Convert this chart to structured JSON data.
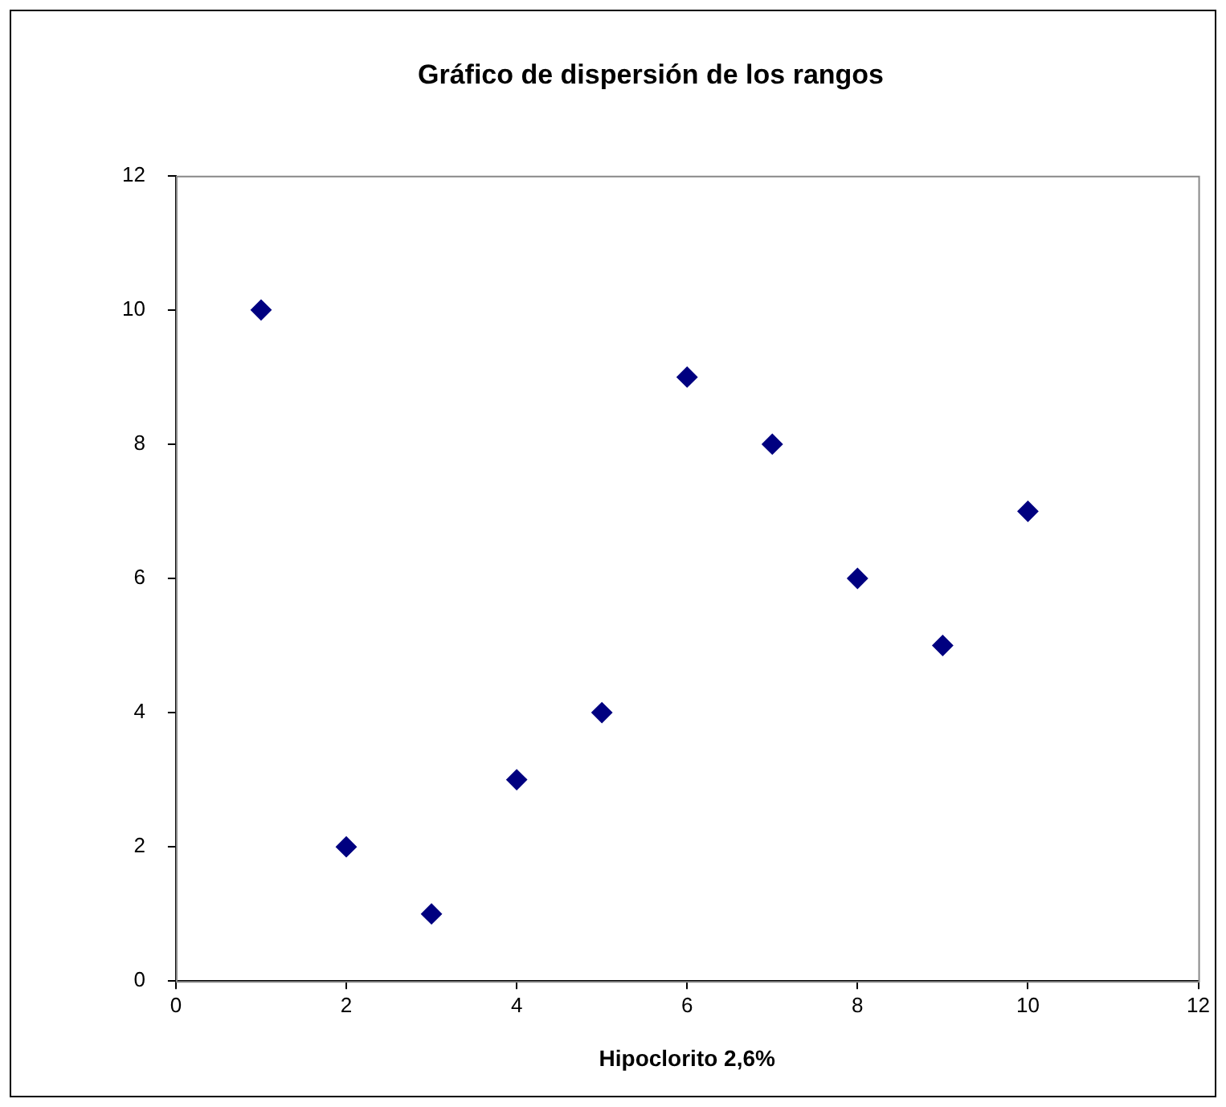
{
  "chart_data": {
    "type": "scatter",
    "title": "Gráfico de dispersión de los rangos",
    "xlabel": "Hipoclorito 2,6%",
    "x": [
      1,
      2,
      3,
      4,
      5,
      6,
      7,
      8,
      9,
      10
    ],
    "series": [
      {
        "color": "#000080",
        "values": [
          10,
          2,
          1,
          3,
          4,
          9,
          8,
          6,
          5,
          7
        ]
      }
    ],
    "xlim": [
      0,
      12
    ],
    "xticks": [
      0,
      2,
      4,
      6,
      8,
      10,
      12
    ],
    "ylim": [
      0,
      12
    ],
    "yticks": [
      0,
      2,
      4,
      6,
      8,
      10,
      12
    ],
    "grid": false,
    "legend": false,
    "marker": "diamond"
  }
}
